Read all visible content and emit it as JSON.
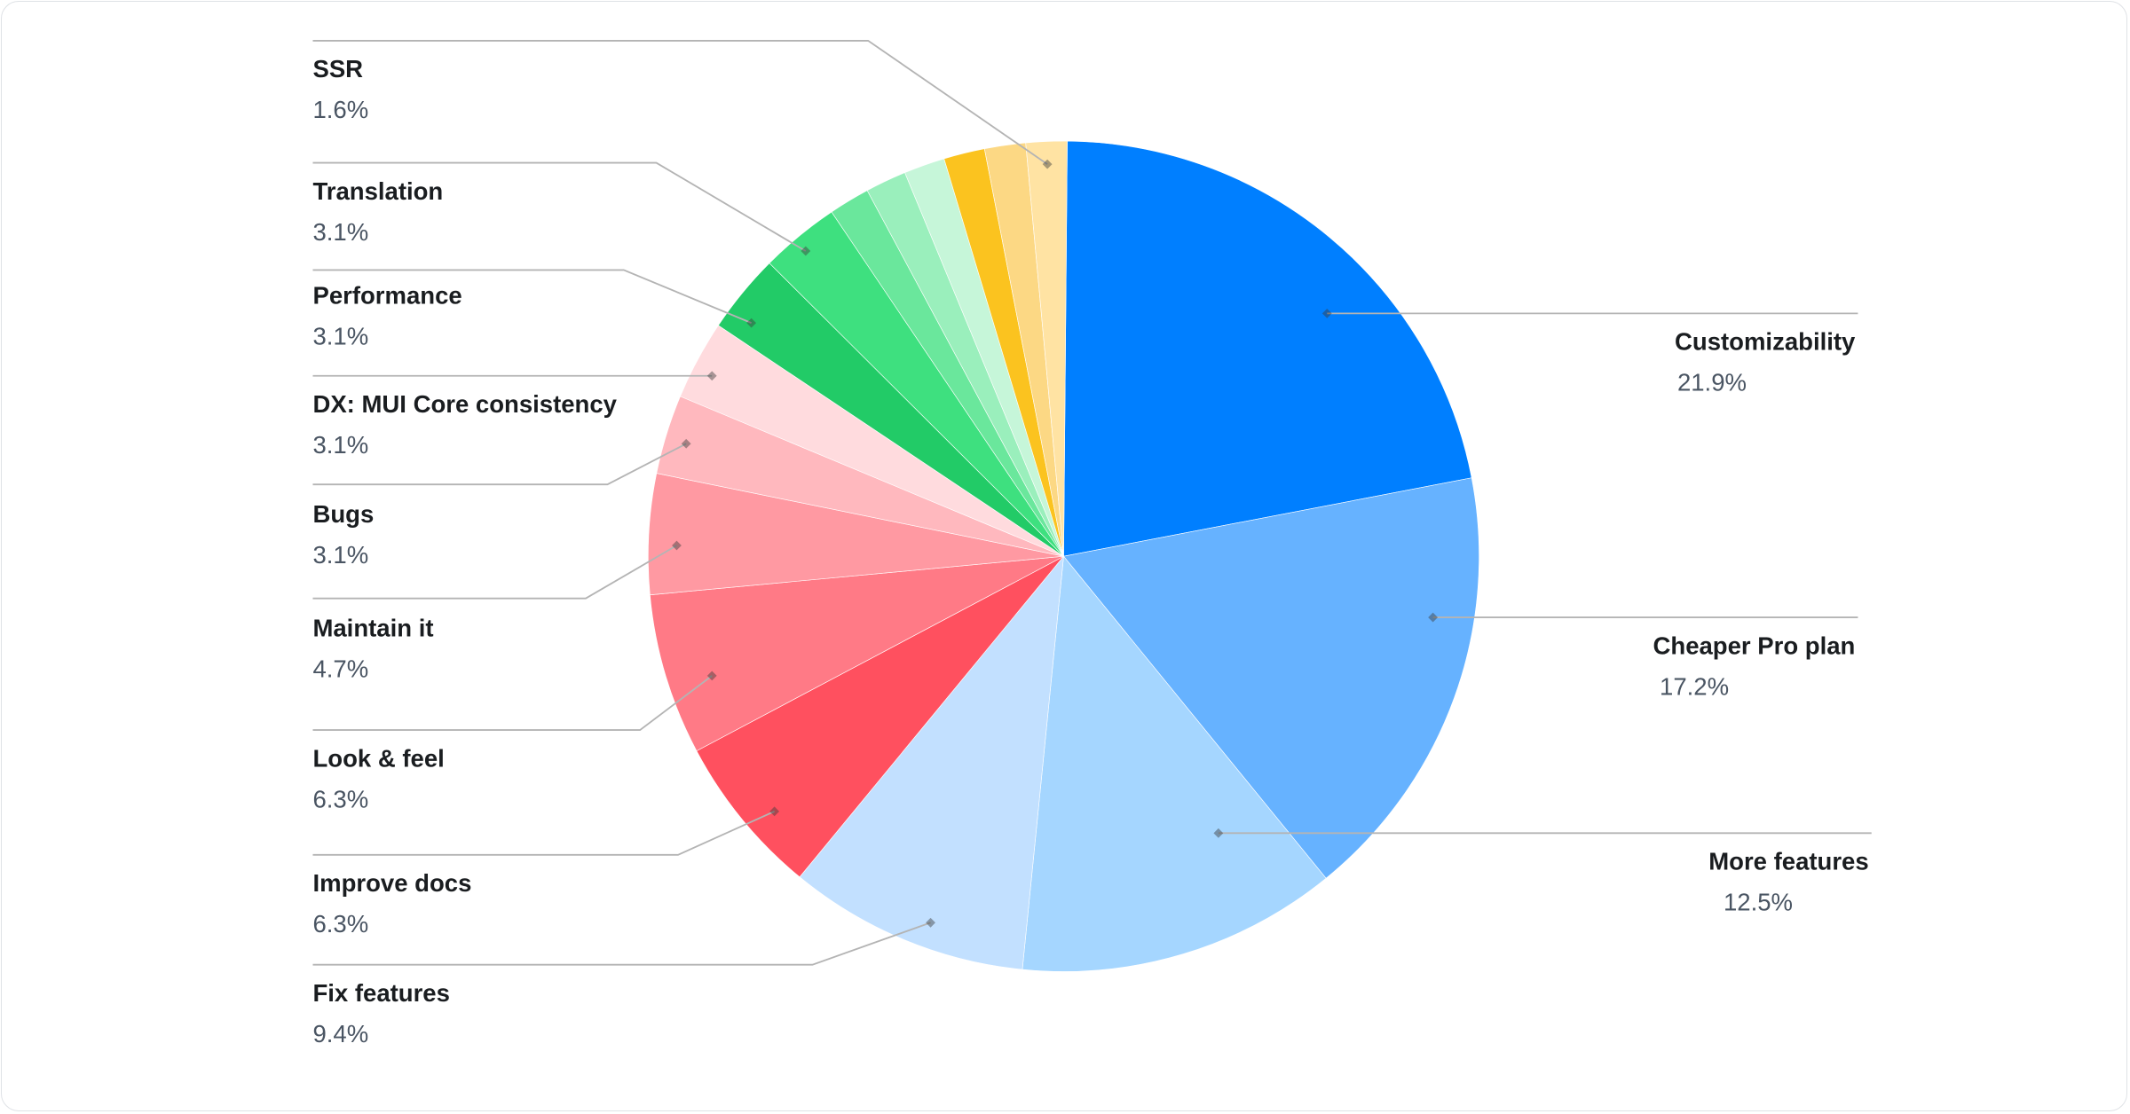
{
  "chart_data": {
    "type": "pie",
    "slices": [
      {
        "label": "Customizability",
        "value": 21.9,
        "value_label": "21.9%",
        "color": "#007FFF"
      },
      {
        "label": "Cheaper Pro plan",
        "value": 17.2,
        "value_label": "17.2%",
        "color": "#66B2FF"
      },
      {
        "label": "More features",
        "value": 12.5,
        "value_label": "12.5%",
        "color": "#A5D6FF"
      },
      {
        "label": "Fix features",
        "value": 9.4,
        "value_label": "9.4%",
        "color": "#C2E0FF"
      },
      {
        "label": "Improve docs",
        "value": 6.3,
        "value_label": "6.3%",
        "color": "#FF505F"
      },
      {
        "label": "Look & feel",
        "value": 6.3,
        "value_label": "6.3%",
        "color": "#FF7A86"
      },
      {
        "label": "Maintain it",
        "value": 4.7,
        "value_label": "4.7%",
        "color": "#FF99A2"
      },
      {
        "label": "Bugs",
        "value": 3.1,
        "value_label": "3.1%",
        "color": "#FFB8BE"
      },
      {
        "label": "DX: MUI Core consistency",
        "value": 3.1,
        "value_label": "3.1%",
        "color": "#FFDBDE"
      },
      {
        "label": "Performance",
        "value": 3.1,
        "value_label": "3.1%",
        "color": "#22CB67"
      },
      {
        "label": "Translation",
        "value": 3.1,
        "value_label": "3.1%",
        "color": "#3EE07F"
      },
      {
        "label": "",
        "value": 1.6,
        "value_label": "",
        "color": "#6AE79C"
      },
      {
        "label": "",
        "value": 1.6,
        "value_label": "",
        "color": "#9AEFBC"
      },
      {
        "label": "",
        "value": 1.6,
        "value_label": "",
        "color": "#C6F6D9"
      },
      {
        "label": "",
        "value": 1.6,
        "value_label": "",
        "color": "#FBC31F"
      },
      {
        "label": "",
        "value": 1.6,
        "value_label": "",
        "color": "#FCD884"
      },
      {
        "label": "SSR",
        "value": 1.6,
        "value_label": "1.6%",
        "color": "#FFE3A3"
      }
    ],
    "legend": "none",
    "label_style": "leader-lines"
  }
}
